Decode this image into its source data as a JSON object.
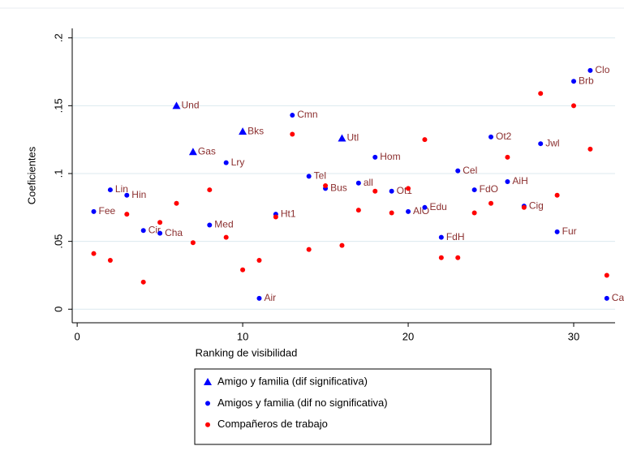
{
  "chart_data": {
    "type": "scatter",
    "x_label": "Ranking de visibilidad",
    "y_label": "Coeficientes",
    "xlim": [
      -0.3,
      32.5
    ],
    "ylim": [
      -0.01,
      0.207
    ],
    "xticks": [
      0,
      10,
      20,
      30
    ],
    "yticks": [
      0,
      {
        "value": 0.05,
        "label": ".05"
      },
      {
        "value": 0.1,
        "label": ".1"
      },
      {
        "value": 0.15,
        "label": ".15"
      },
      {
        "value": 0.2,
        "label": ".2"
      }
    ],
    "grid": true,
    "legend": "bottom",
    "series": [
      {
        "name": "Amigo y familia (dif significativa)",
        "color": "#0000ff",
        "marker": "triangle",
        "x": [
          6,
          10,
          7,
          16
        ],
        "values": [
          0.15,
          0.131,
          0.116,
          0.126
        ],
        "labels": [
          "Und",
          "Bks",
          "Gas",
          "Utl"
        ]
      },
      {
        "name": "Amigos y familia (dif no significativa)",
        "color": "#0000ff",
        "marker": "circle",
        "x": [
          2,
          3,
          1,
          4,
          5,
          8,
          9,
          12,
          11,
          13,
          14,
          15,
          17,
          18,
          19,
          20,
          21,
          22,
          23,
          24,
          25,
          26,
          27,
          29,
          28,
          30,
          31,
          32
        ],
        "values": [
          0.088,
          0.084,
          0.072,
          0.058,
          0.056,
          0.062,
          0.108,
          0.07,
          0.008,
          0.143,
          0.098,
          0.089,
          0.093,
          0.112,
          0.087,
          0.072,
          0.075,
          0.053,
          0.102,
          0.088,
          0.127,
          0.094,
          0.076,
          0.057,
          0.122,
          0.168,
          0.176,
          0.008
        ],
        "labels": [
          "Lin",
          "Hin",
          "Fee",
          "Cir",
          "Cha",
          "Med",
          "Lry",
          "Ht1",
          "Air",
          "Cmn",
          "Tel",
          "Bus",
          "all",
          "Hom",
          "Ot1",
          "AlO",
          "Edu",
          "FdH",
          "Cel",
          "FdO",
          "Ot2",
          "AiH",
          "Cig",
          "Fur",
          "Jwl",
          "Brb",
          "Clo",
          "Ca"
        ]
      },
      {
        "name": "Compañeros de trabajo",
        "color": "#ff0000",
        "marker": "circle",
        "x": [
          1,
          2,
          3,
          4,
          5,
          6,
          7,
          8,
          9,
          10,
          11,
          12,
          13,
          14,
          15,
          16,
          17,
          18,
          19,
          20,
          21,
          22,
          23,
          24,
          25,
          26,
          27,
          28,
          29,
          30,
          31,
          32
        ],
        "values": [
          0.041,
          0.036,
          0.07,
          0.02,
          0.064,
          0.078,
          0.049,
          0.088,
          0.053,
          0.029,
          0.036,
          0.068,
          0.129,
          0.044,
          0.091,
          0.047,
          0.073,
          0.087,
          0.071,
          0.089,
          0.125,
          0.038,
          0.038,
          0.071,
          0.078,
          0.112,
          0.075,
          0.159,
          0.084,
          0.15,
          0.118,
          0.025
        ]
      }
    ]
  }
}
